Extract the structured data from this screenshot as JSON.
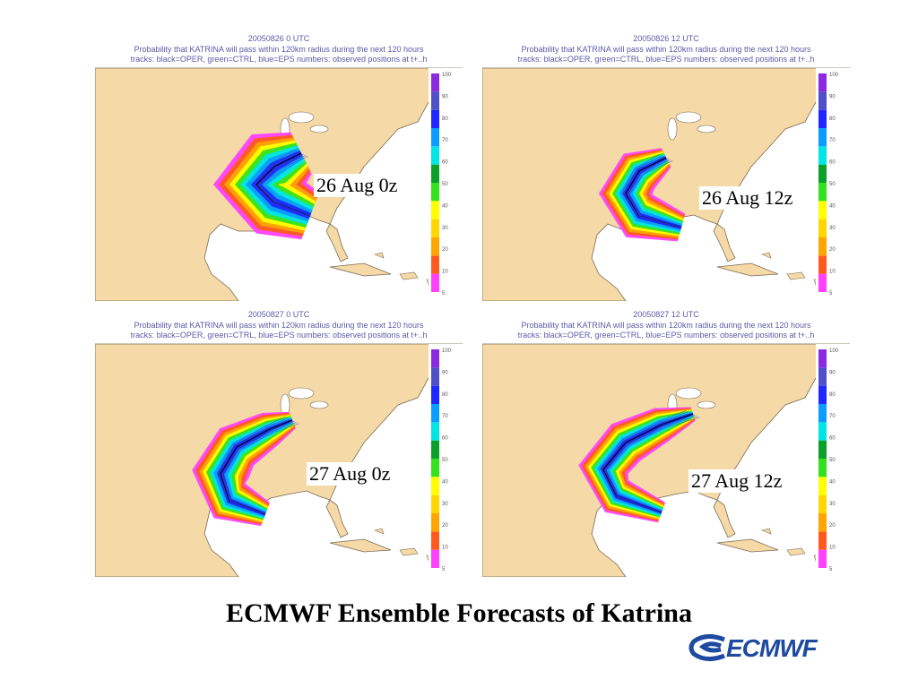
{
  "title": "ECMWF Ensemble Forecasts of Katrina",
  "logo_text": "ECMWF",
  "colors": {
    "land": "#f5d9a6",
    "ocean": "#ffffff",
    "coast": "#7a6a55",
    "logo": "#1e4aa0",
    "probability_scale": [
      "#ff40ff",
      "#ff5a1e",
      "#ffa500",
      "#ffd700",
      "#ffff00",
      "#34e21c",
      "#0aa02a",
      "#00e6e6",
      "#0a9cff",
      "#1e28ff",
      "#5050c8",
      "#8a2be2"
    ]
  },
  "panels": [
    {
      "label": "26 Aug 0z",
      "date_text": "20050826  0 UTC",
      "line1": "Probability that KATRINA will pass within 120km radius during the next 120 hours",
      "line2": "tracks: black=OPER, green=CTRL, blue=EPS numbers: observed positions at t+..h",
      "scale": [
        "100",
        "90",
        "80",
        "70",
        "60",
        "50",
        "40",
        "30",
        "20",
        "10",
        "5"
      ]
    },
    {
      "label": "26 Aug 12z",
      "date_text": "20050826 12 UTC",
      "line1": "Probability that KATRINA will pass within 120km radius during the next 120 hours",
      "line2": "tracks: black=OPER, green=CTRL, blue=EPS numbers: observed positions at t+..h",
      "scale": [
        "100",
        "90",
        "80",
        "70",
        "60",
        "50",
        "40",
        "30",
        "20",
        "10",
        "5"
      ]
    },
    {
      "label": "27 Aug 0z",
      "date_text": "20050827  0 UTC",
      "line1": "Probability that KATRINA will pass within 120km radius during the next 120 hours",
      "line2": "tracks: black=OPER, green=CTRL, blue=EPS numbers: observed positions at t+..h",
      "scale": [
        "100",
        "90",
        "80",
        "70",
        "60",
        "50",
        "40",
        "30",
        "20",
        "10",
        "5"
      ]
    },
    {
      "label": "27 Aug 12z",
      "date_text": "20050827 12 UTC",
      "line1": "Probability that KATRINA will pass within 120km radius during the next 120 hours",
      "line2": "tracks: black=OPER, green=CTRL, blue=EPS numbers: observed positions at t+..h",
      "scale": [
        "100",
        "90",
        "80",
        "70",
        "60",
        "50",
        "40",
        "30",
        "20",
        "10",
        "5"
      ]
    }
  ]
}
